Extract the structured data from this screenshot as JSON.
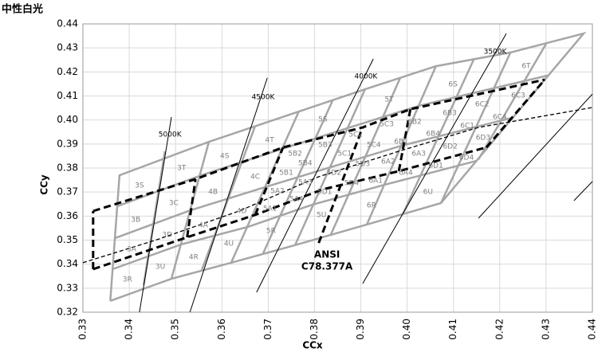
{
  "chart_data": {
    "type": "chromaticity",
    "title": "中性白光",
    "x_label": "CCx",
    "y_label": "CCy",
    "xlim": [
      0.33,
      0.44
    ],
    "ylim": [
      0.32,
      0.44
    ],
    "xticks": [
      0.33,
      0.34,
      0.35,
      0.36,
      0.37,
      0.38,
      0.39,
      {
        "value": 0.4,
        "label": "0.40"
      },
      0.41,
      0.42,
      0.43,
      0.44
    ],
    "yticks": [
      0.32,
      0.33,
      0.34,
      0.35,
      0.36,
      0.37,
      0.38,
      0.39,
      {
        "value": 0.4,
        "label": "0.40"
      },
      0.41,
      0.42,
      0.43,
      0.44
    ],
    "grid": true,
    "grid_color": "#d9d9d9",
    "bin_color": "#a6a6a6",
    "bin_lines": [
      {
        "x": [
          0.3359,
          0.3379,
          0.3572,
          0.3766,
          0.3909,
          0.4062,
          0.4223,
          0.4381,
          0.4073,
          0.3913,
          0.3758,
          0.362,
          0.3491,
          0.3359
        ],
        "y": [
          0.3247,
          0.377,
          0.3909,
          0.4035,
          0.4128,
          0.4224,
          0.4281,
          0.436,
          0.3654,
          0.3565,
          0.3479,
          0.3406,
          0.3339,
          0.3247
        ]
      },
      {
        "x": [
          0.3364,
          0.3512,
          0.3656,
          0.3796,
          0.3951,
          0.415
        ],
        "y": [
          0.3379,
          0.3482,
          0.3555,
          0.3648,
          0.373,
          0.383
        ]
      },
      {
        "x": [
          0.3369,
          0.3532,
          0.3694,
          0.3834,
          0.3988,
          0.4226
        ],
        "y": [
          0.3508,
          0.3624,
          0.3721,
          0.3803,
          0.3893,
          0.4009
        ]
      },
      {
        "x": [
          0.3374,
          0.3551,
          0.373,
          0.3871,
          0.4025,
          0.4303
        ],
        "y": [
          0.3641,
          0.3767,
          0.388,
          0.3966,
          0.4059,
          0.4185
        ]
      },
      {
        "x": [
          0.3431,
          0.3477
        ],
        "y": [
          0.3313,
          0.387
        ]
      },
      {
        "x": [
          0.3491,
          0.3572
        ],
        "y": [
          0.3339,
          0.3909
        ]
      },
      {
        "x": [
          0.3556,
          0.3672
        ],
        "y": [
          0.3372,
          0.3976
        ]
      },
      {
        "x": [
          0.362,
          0.3766
        ],
        "y": [
          0.3406,
          0.4035
        ]
      },
      {
        "x": [
          0.3689,
          0.384
        ],
        "y": [
          0.3445,
          0.4085
        ]
      },
      {
        "x": [
          0.3758,
          0.3909
        ],
        "y": [
          0.3479,
          0.4128
        ]
      },
      {
        "x": [
          0.3835,
          0.3985
        ],
        "y": [
          0.3522,
          0.4175
        ]
      },
      {
        "x": [
          0.3913,
          0.4062
        ],
        "y": [
          0.3565,
          0.4224
        ]
      },
      {
        "x": [
          0.399,
          0.4145
        ],
        "y": [
          0.3605,
          0.4257
        ]
      },
      {
        "x": [
          0.4073,
          0.4223
        ],
        "y": [
          0.3654,
          0.4281
        ]
      },
      {
        "x": [
          0.4154,
          0.43
        ],
        "y": [
          0.3836,
          0.4317
        ]
      }
    ],
    "locus": {
      "color": "#000000",
      "x": [
        0.33,
        0.3465,
        0.3637,
        0.3809,
        0.3982,
        0.4154,
        0.44
      ],
      "y": [
        0.3406,
        0.3505,
        0.3621,
        0.3764,
        0.387,
        0.3969,
        0.4052
      ]
    },
    "cct_lines": [
      {
        "label": "5000K",
        "x": [
          0.3422,
          0.3491
        ],
        "y": [
          0.32,
          0.4012
        ],
        "label_x": 0.3488,
        "label_y": 0.3939
      },
      {
        "label": "4500K",
        "x": [
          0.3531,
          0.3698
        ],
        "y": [
          0.32,
          0.4175
        ],
        "label_x": 0.3689,
        "label_y": 0.4095
      },
      {
        "label": "4000K",
        "x": [
          0.3675,
          0.3927
        ],
        "y": [
          0.3283,
          0.4254
        ],
        "label_x": 0.3911,
        "label_y": 0.4181
      },
      {
        "label": "3500K",
        "x": [
          0.3904,
          0.4214
        ],
        "y": [
          0.3319,
          0.436
        ],
        "label_x": 0.419,
        "label_y": 0.4284
      }
    ],
    "extra_lines": [
      {
        "x": [
          0.4154,
          0.44
        ],
        "y": [
          0.3591,
          0.4108
        ]
      },
      {
        "x": [
          0.436,
          0.44
        ],
        "y": [
          0.3664,
          0.3744
        ]
      }
    ],
    "ansi_color": "#000000",
    "ansi_lines": [
      {
        "x": [
          0.3322,
          0.3543,
          0.3732,
          0.3904,
          0.4007,
          0.4297
        ],
        "y": [
          0.3621,
          0.3754,
          0.3886,
          0.3969,
          0.4045,
          0.4168
        ]
      },
      {
        "x": [
          0.3322,
          0.3525,
          0.3672,
          0.3818,
          0.3982,
          0.4171
        ],
        "y": [
          0.3379,
          0.3512,
          0.3605,
          0.3711,
          0.3787,
          0.3886
        ]
      },
      {
        "x": [
          0.3322,
          0.3322
        ],
        "y": [
          0.3379,
          0.3621
        ]
      },
      {
        "x": [
          0.4171,
          0.4297
        ],
        "y": [
          0.3886,
          0.4168
        ]
      },
      {
        "x": [
          0.3525,
          0.3543
        ],
        "y": [
          0.3512,
          0.3754
        ]
      },
      {
        "x": [
          0.3672,
          0.3732
        ],
        "y": [
          0.3605,
          0.3886
        ]
      },
      {
        "x": [
          0.3809,
          0.3904
        ],
        "y": [
          0.3488,
          0.3969
        ]
      },
      {
        "x": [
          0.3982,
          0.4007
        ],
        "y": [
          0.3787,
          0.4045
        ]
      }
    ],
    "annotations": [
      {
        "text": "ANSI",
        "x": 0.3827,
        "y": 0.3439
      },
      {
        "text": "C78.377A",
        "x": 0.3827,
        "y": 0.3389
      }
    ],
    "bin_labels": [
      {
        "text": "3R",
        "x": 0.3396,
        "y": 0.3336
      },
      {
        "text": "3U",
        "x": 0.3467,
        "y": 0.3389
      },
      {
        "text": "3A",
        "x": 0.3405,
        "y": 0.3462
      },
      {
        "text": "3D",
        "x": 0.3482,
        "y": 0.3522
      },
      {
        "text": "3B",
        "x": 0.3414,
        "y": 0.3585
      },
      {
        "text": "3C",
        "x": 0.3496,
        "y": 0.3654
      },
      {
        "text": "3S",
        "x": 0.3422,
        "y": 0.3727
      },
      {
        "text": "3T",
        "x": 0.3513,
        "y": 0.38
      },
      {
        "text": "4R",
        "x": 0.3539,
        "y": 0.3429
      },
      {
        "text": "4U",
        "x": 0.3615,
        "y": 0.3485
      },
      {
        "text": "4A",
        "x": 0.356,
        "y": 0.3561
      },
      {
        "text": "4D",
        "x": 0.3643,
        "y": 0.3621
      },
      {
        "text": "4B",
        "x": 0.3581,
        "y": 0.3701
      },
      {
        "text": "4C",
        "x": 0.3672,
        "y": 0.3764
      },
      {
        "text": "4S",
        "x": 0.3606,
        "y": 0.385
      },
      {
        "text": "4T",
        "x": 0.3703,
        "y": 0.3916
      },
      {
        "text": "5R",
        "x": 0.3706,
        "y": 0.3538
      },
      {
        "text": "5U",
        "x": 0.3815,
        "y": 0.3605
      },
      {
        "text": "5A1",
        "x": 0.3704,
        "y": 0.3631
      },
      {
        "text": "5A4",
        "x": 0.3761,
        "y": 0.3671
      },
      {
        "text": "5A2",
        "x": 0.372,
        "y": 0.3704
      },
      {
        "text": "5A3",
        "x": 0.378,
        "y": 0.374
      },
      {
        "text": "5D1",
        "x": 0.3822,
        "y": 0.3701
      },
      {
        "text": "5D4",
        "x": 0.388,
        "y": 0.3737
      },
      {
        "text": "5B1",
        "x": 0.3739,
        "y": 0.378
      },
      {
        "text": "5B4",
        "x": 0.378,
        "y": 0.382
      },
      {
        "text": "5D2",
        "x": 0.3842,
        "y": 0.378
      },
      {
        "text": "5D3",
        "x": 0.3904,
        "y": 0.3817
      },
      {
        "text": "5B2",
        "x": 0.3758,
        "y": 0.386
      },
      {
        "text": "5B3",
        "x": 0.3823,
        "y": 0.3896
      },
      {
        "text": "5C1",
        "x": 0.3865,
        "y": 0.386
      },
      {
        "text": "5C4",
        "x": 0.3928,
        "y": 0.3896
      },
      {
        "text": "5C2",
        "x": 0.3889,
        "y": 0.3939
      },
      {
        "text": "5C3",
        "x": 0.3956,
        "y": 0.3982
      },
      {
        "text": "5S",
        "x": 0.3818,
        "y": 0.4002
      },
      {
        "text": "5T",
        "x": 0.3961,
        "y": 0.4085
      },
      {
        "text": "6R",
        "x": 0.3923,
        "y": 0.3644
      },
      {
        "text": "6U",
        "x": 0.4045,
        "y": 0.3701
      },
      {
        "text": "6A1",
        "x": 0.3932,
        "y": 0.3747
      },
      {
        "text": "6A4",
        "x": 0.3997,
        "y": 0.378
      },
      {
        "text": "6A2",
        "x": 0.3959,
        "y": 0.3827
      },
      {
        "text": "6A3",
        "x": 0.4025,
        "y": 0.386
      },
      {
        "text": "6D1",
        "x": 0.4062,
        "y": 0.381
      },
      {
        "text": "6D4",
        "x": 0.4128,
        "y": 0.3843
      },
      {
        "text": "6B1",
        "x": 0.3987,
        "y": 0.3909
      },
      {
        "text": "6B4",
        "x": 0.4056,
        "y": 0.3943
      },
      {
        "text": "6D2",
        "x": 0.4093,
        "y": 0.389
      },
      {
        "text": "6D3",
        "x": 0.4164,
        "y": 0.3926
      },
      {
        "text": "6B2",
        "x": 0.4016,
        "y": 0.3992
      },
      {
        "text": "6B3",
        "x": 0.4092,
        "y": 0.4029
      },
      {
        "text": "6C1",
        "x": 0.413,
        "y": 0.3976
      },
      {
        "text": "6C4",
        "x": 0.42,
        "y": 0.4012
      },
      {
        "text": "6C2",
        "x": 0.4162,
        "y": 0.4065
      },
      {
        "text": "6C3",
        "x": 0.424,
        "y": 0.4102
      },
      {
        "text": "6S",
        "x": 0.4099,
        "y": 0.4148
      },
      {
        "text": "6T",
        "x": 0.4257,
        "y": 0.4224
      }
    ]
  }
}
